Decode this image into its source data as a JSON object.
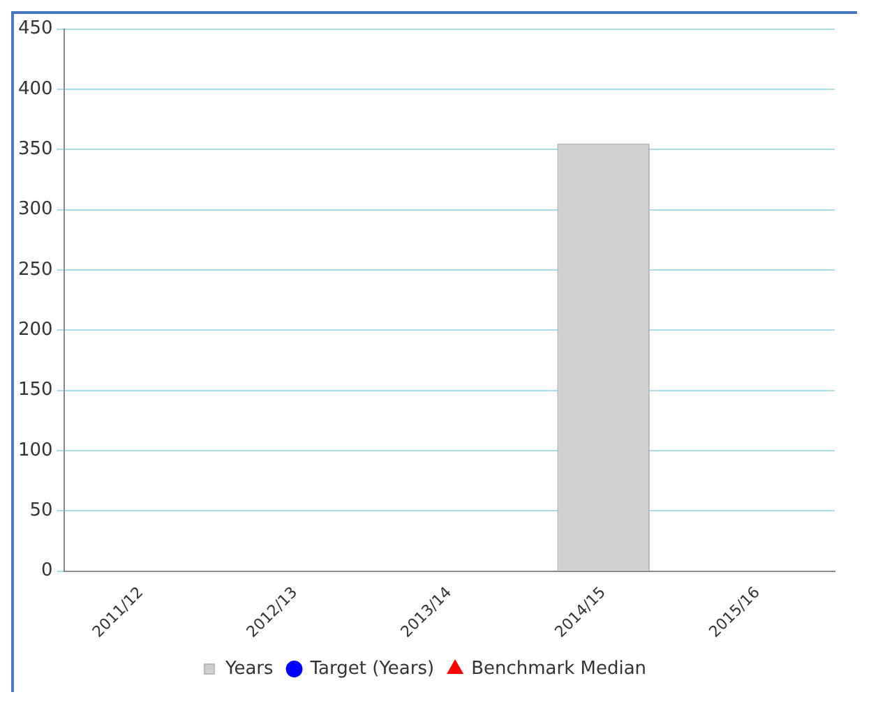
{
  "chart_data": {
    "type": "bar",
    "categories": [
      "2011/12",
      "2012/13",
      "2013/14",
      "2014/15",
      "2015/16"
    ],
    "series": [
      {
        "name": "Years",
        "color": "#cfcfcf",
        "values": [
          null,
          null,
          null,
          355,
          null
        ]
      },
      {
        "name": "Target (Years)",
        "type": "line",
        "color": "#0000ff",
        "marker": "circle",
        "values": [
          null,
          null,
          null,
          null,
          null
        ]
      },
      {
        "name": "Benchmark Median",
        "type": "line",
        "color": "#ff0000",
        "marker": "triangle",
        "values": [
          null,
          null,
          null,
          null,
          null
        ]
      }
    ],
    "ylim": [
      0,
      450
    ],
    "yticks": [
      0,
      50,
      100,
      150,
      200,
      250,
      300,
      350,
      400,
      450
    ],
    "grid": "y",
    "legend": "bottom"
  }
}
